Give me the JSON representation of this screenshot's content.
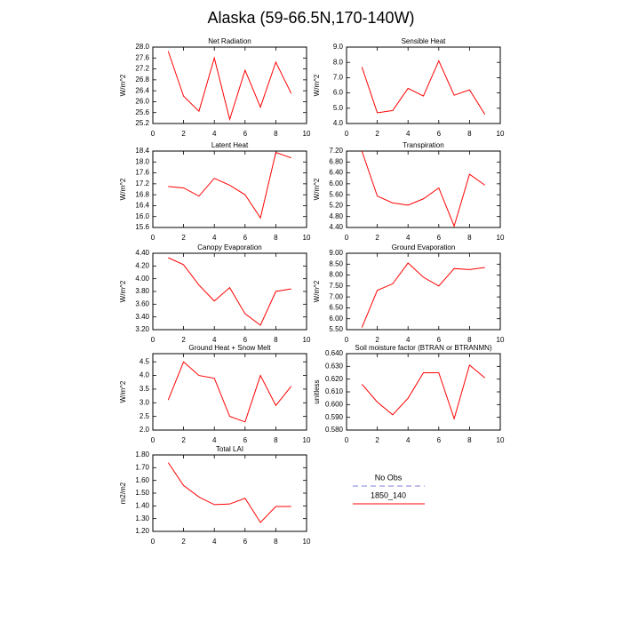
{
  "title": "Alaska (59-66.5N,170-140W)",
  "legend": [
    {
      "name": "No Obs",
      "color": "#a8a8e8",
      "dash": true
    },
    {
      "name": "1850_140",
      "color": "#ff0000",
      "dash": false
    }
  ],
  "chart_data": [
    {
      "type": "line",
      "title": "Net Radiation",
      "ylabel": "W/m^2",
      "color": "#ff0000",
      "x": [
        1,
        2,
        3,
        4,
        5,
        6,
        7,
        8,
        9
      ],
      "values": [
        27.85,
        26.2,
        25.65,
        27.6,
        25.35,
        27.15,
        25.8,
        27.45,
        26.3
      ],
      "xlim": [
        0,
        10
      ],
      "xticks": [
        0,
        2,
        4,
        6,
        8,
        10
      ],
      "ylim": [
        25.2,
        28.0
      ],
      "yticks": [
        25.2,
        25.6,
        {
          "value": 26,
          "label": "26.0"
        },
        26.4,
        26.8,
        27.2,
        27.6,
        {
          "value": 28,
          "label": "28.0"
        }
      ]
    },
    {
      "type": "line",
      "title": "Sensible Heat",
      "ylabel": "W/m^2",
      "color": "#ff0000",
      "x": [
        1,
        2,
        3,
        4,
        5,
        6,
        7,
        8,
        9
      ],
      "values": [
        7.7,
        4.7,
        4.85,
        6.3,
        5.8,
        8.1,
        5.85,
        6.2,
        4.6
      ],
      "xlim": [
        0,
        10
      ],
      "xticks": [
        0,
        2,
        4,
        6,
        8,
        10
      ],
      "ylim": [
        4,
        9
      ],
      "yticks": [
        {
          "value": 4,
          "label": "4.0"
        },
        {
          "value": 5,
          "label": "5.0"
        },
        {
          "value": 6,
          "label": "6.0"
        },
        {
          "value": 7,
          "label": "7.0"
        },
        {
          "value": 8,
          "label": "8.0"
        },
        {
          "value": 9,
          "label": "9.0"
        }
      ]
    },
    {
      "type": "line",
      "title": "Latent Heat",
      "ylabel": "W/m^2",
      "color": "#ff0000",
      "x": [
        1,
        2,
        3,
        4,
        5,
        6,
        7,
        8,
        9
      ],
      "values": [
        17.1,
        17.05,
        16.75,
        17.4,
        17.15,
        16.8,
        15.95,
        18.35,
        18.15
      ],
      "xlim": [
        0,
        10
      ],
      "xticks": [
        0,
        2,
        4,
        6,
        8,
        10
      ],
      "ylim": [
        15.6,
        18.4
      ],
      "yticks": [
        15.6,
        {
          "value": 16,
          "label": "16.0"
        },
        16.4,
        16.8,
        17.2,
        17.6,
        {
          "value": 18,
          "label": "18.0"
        },
        18.4
      ]
    },
    {
      "type": "line",
      "title": "Transpiration",
      "ylabel": "W/m^2",
      "color": "#ff0000",
      "x": [
        1,
        2,
        3,
        4,
        5,
        6,
        7,
        8,
        9
      ],
      "values": [
        7.2,
        5.55,
        5.3,
        5.22,
        5.45,
        5.85,
        4.45,
        6.35,
        5.95
      ],
      "xlim": [
        0,
        10
      ],
      "xticks": [
        0,
        2,
        4,
        6,
        8,
        10
      ],
      "ylim": [
        4.4,
        7.2
      ],
      "yticks": [
        {
          "value": 4.4,
          "label": "4.40"
        },
        {
          "value": 4.8,
          "label": "4.80"
        },
        {
          "value": 5.2,
          "label": "5.20"
        },
        {
          "value": 5.6,
          "label": "5.60"
        },
        {
          "value": 6,
          "label": "6.00"
        },
        {
          "value": 6.4,
          "label": "6.40"
        },
        {
          "value": 6.8,
          "label": "6.80"
        },
        {
          "value": 7.2,
          "label": "7.20"
        }
      ]
    },
    {
      "type": "line",
      "title": "Canopy Evaporation",
      "ylabel": "W/m^2",
      "color": "#ff0000",
      "x": [
        1,
        2,
        3,
        4,
        5,
        6,
        7,
        8,
        9
      ],
      "values": [
        4.33,
        4.22,
        3.9,
        3.65,
        3.86,
        3.45,
        3.27,
        3.8,
        3.84
      ],
      "xlim": [
        0,
        10
      ],
      "xticks": [
        0,
        2,
        4,
        6,
        8,
        10
      ],
      "ylim": [
        3.2,
        4.4
      ],
      "yticks": [
        {
          "value": 3.2,
          "label": "3.20"
        },
        {
          "value": 3.4,
          "label": "3.40"
        },
        {
          "value": 3.6,
          "label": "3.60"
        },
        {
          "value": 3.8,
          "label": "3.80"
        },
        {
          "value": 4,
          "label": "4.00"
        },
        {
          "value": 4.2,
          "label": "4.20"
        },
        {
          "value": 4.4,
          "label": "4.40"
        }
      ]
    },
    {
      "type": "line",
      "title": "Ground Evaporation",
      "ylabel": "W/m^2",
      "color": "#ff0000",
      "x": [
        1,
        2,
        3,
        4,
        5,
        6,
        7,
        8,
        9
      ],
      "values": [
        5.6,
        7.3,
        7.6,
        8.55,
        7.9,
        7.5,
        8.3,
        8.25,
        8.35
      ],
      "xlim": [
        0,
        10
      ],
      "xticks": [
        0,
        2,
        4,
        6,
        8,
        10
      ],
      "ylim": [
        5.5,
        9
      ],
      "yticks": [
        {
          "value": 5.5,
          "label": "5.50"
        },
        {
          "value": 6,
          "label": "6.00"
        },
        {
          "value": 6.5,
          "label": "6.50"
        },
        {
          "value": 7,
          "label": "7.00"
        },
        {
          "value": 7.5,
          "label": "7.50"
        },
        {
          "value": 8,
          "label": "8.00"
        },
        {
          "value": 8.5,
          "label": "8.50"
        },
        {
          "value": 9,
          "label": "9.00"
        }
      ]
    },
    {
      "type": "line",
      "title": "Ground Heat + Snow Melt",
      "ylabel": "W/m^2",
      "color": "#ff0000",
      "x": [
        1,
        2,
        3,
        4,
        5,
        6,
        7,
        8,
        9
      ],
      "values": [
        3.1,
        4.5,
        4.0,
        3.9,
        2.5,
        2.3,
        4.0,
        2.9,
        3.6
      ],
      "xlim": [
        0,
        10
      ],
      "xticks": [
        0,
        2,
        4,
        6,
        8,
        10
      ],
      "ylim": [
        2,
        4.8
      ],
      "yticks": [
        {
          "value": 2,
          "label": "2.0"
        },
        2.5,
        {
          "value": 3,
          "label": "3.0"
        },
        3.5,
        {
          "value": 4,
          "label": "4.0"
        },
        4.5
      ]
    },
    {
      "type": "line",
      "title": "Soil moisture factor (BTRAN or BTRANMN)",
      "ylabel": "unitless",
      "color": "#ff0000",
      "x": [
        1,
        2,
        3,
        4,
        5,
        6,
        7,
        8,
        9
      ],
      "values": [
        0.616,
        0.602,
        0.592,
        0.605,
        0.625,
        0.625,
        0.589,
        0.631,
        0.621
      ],
      "xlim": [
        0,
        10
      ],
      "xticks": [
        0,
        2,
        4,
        6,
        8,
        10
      ],
      "ylim": [
        0.58,
        0.64
      ],
      "yticks": [
        {
          "value": 0.58,
          "label": "0.580"
        },
        {
          "value": 0.59,
          "label": "0.590"
        },
        {
          "value": 0.6,
          "label": "0.600"
        },
        {
          "value": 0.61,
          "label": "0.610"
        },
        {
          "value": 0.62,
          "label": "0.620"
        },
        {
          "value": 0.63,
          "label": "0.630"
        },
        {
          "value": 0.64,
          "label": "0.640"
        }
      ]
    },
    {
      "type": "line",
      "title": "Total LAI",
      "ylabel": "m2/m2",
      "color": "#ff0000",
      "x": [
        1,
        2,
        3,
        4,
        5,
        6,
        7,
        8,
        9
      ],
      "values": [
        1.74,
        1.56,
        1.47,
        1.41,
        1.415,
        1.46,
        1.27,
        1.395,
        1.395
      ],
      "xlim": [
        0,
        10
      ],
      "xticks": [
        0,
        2,
        4,
        6,
        8,
        10
      ],
      "ylim": [
        1.2,
        1.8
      ],
      "yticks": [
        {
          "value": 1.2,
          "label": "1.20"
        },
        {
          "value": 1.3,
          "label": "1.30"
        },
        {
          "value": 1.4,
          "label": "1.40"
        },
        {
          "value": 1.5,
          "label": "1.50"
        },
        {
          "value": 1.6,
          "label": "1.60"
        },
        {
          "value": 1.7,
          "label": "1.70"
        },
        {
          "value": 1.8,
          "label": "1.80"
        }
      ]
    }
  ]
}
